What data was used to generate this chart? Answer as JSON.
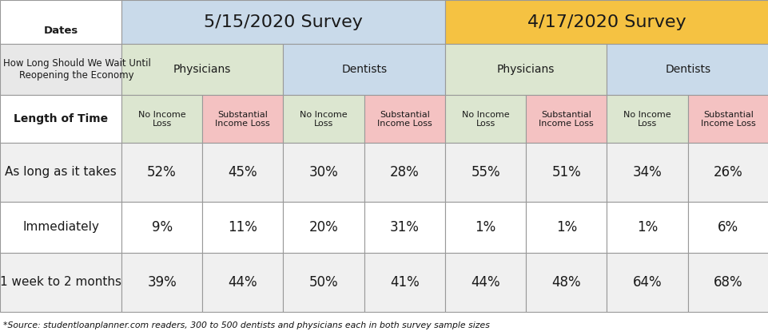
{
  "title_left": "5/15/2020 Survey",
  "title_right": "4/17/2020 Survey",
  "col_header_left_top": "Dates",
  "col_header_question": "How Long Should We Wait Until\nReopening the Economy",
  "col_header_length": "Length of Time",
  "subgroup_labels": [
    "Physicians",
    "Dentists",
    "Physicians",
    "Dentists"
  ],
  "col_labels": [
    "No Income\nLoss",
    "Substantial\nIncome Loss",
    "No Income\nLoss",
    "Substantial\nIncome Loss",
    "No Income\nLoss",
    "Substantial\nIncome Loss",
    "No Income\nLoss",
    "Substantial\nIncome Loss"
  ],
  "row_labels": [
    "As long as it takes",
    "Immediately",
    "1 week to 2 months"
  ],
  "data": [
    [
      "52%",
      "45%",
      "30%",
      "28%",
      "55%",
      "51%",
      "34%",
      "26%"
    ],
    [
      "9%",
      "11%",
      "20%",
      "31%",
      "1%",
      "1%",
      "1%",
      "6%"
    ],
    [
      "39%",
      "44%",
      "50%",
      "41%",
      "44%",
      "48%",
      "64%",
      "68%"
    ]
  ],
  "footnote": "*Source: studentloanplanner.com readers, 300 to 500 dentists and physicians each in both survey sample sizes",
  "color_header_left_bg": "#c9daea",
  "color_header_right_bg": "#f5c242",
  "color_physicians_bg": "#dce6d0",
  "color_dentists_bg": "#c9daea",
  "color_no_income": "#dce6d0",
  "color_substantial": "#f4c2c2",
  "color_row_odd": "#f0f0f0",
  "color_row_even": "#ffffff",
  "color_question_cell": "#e8e8e8",
  "color_length_cell": "#ffffff",
  "fig_w": 9.62,
  "fig_h": 4.2,
  "dpi": 100
}
